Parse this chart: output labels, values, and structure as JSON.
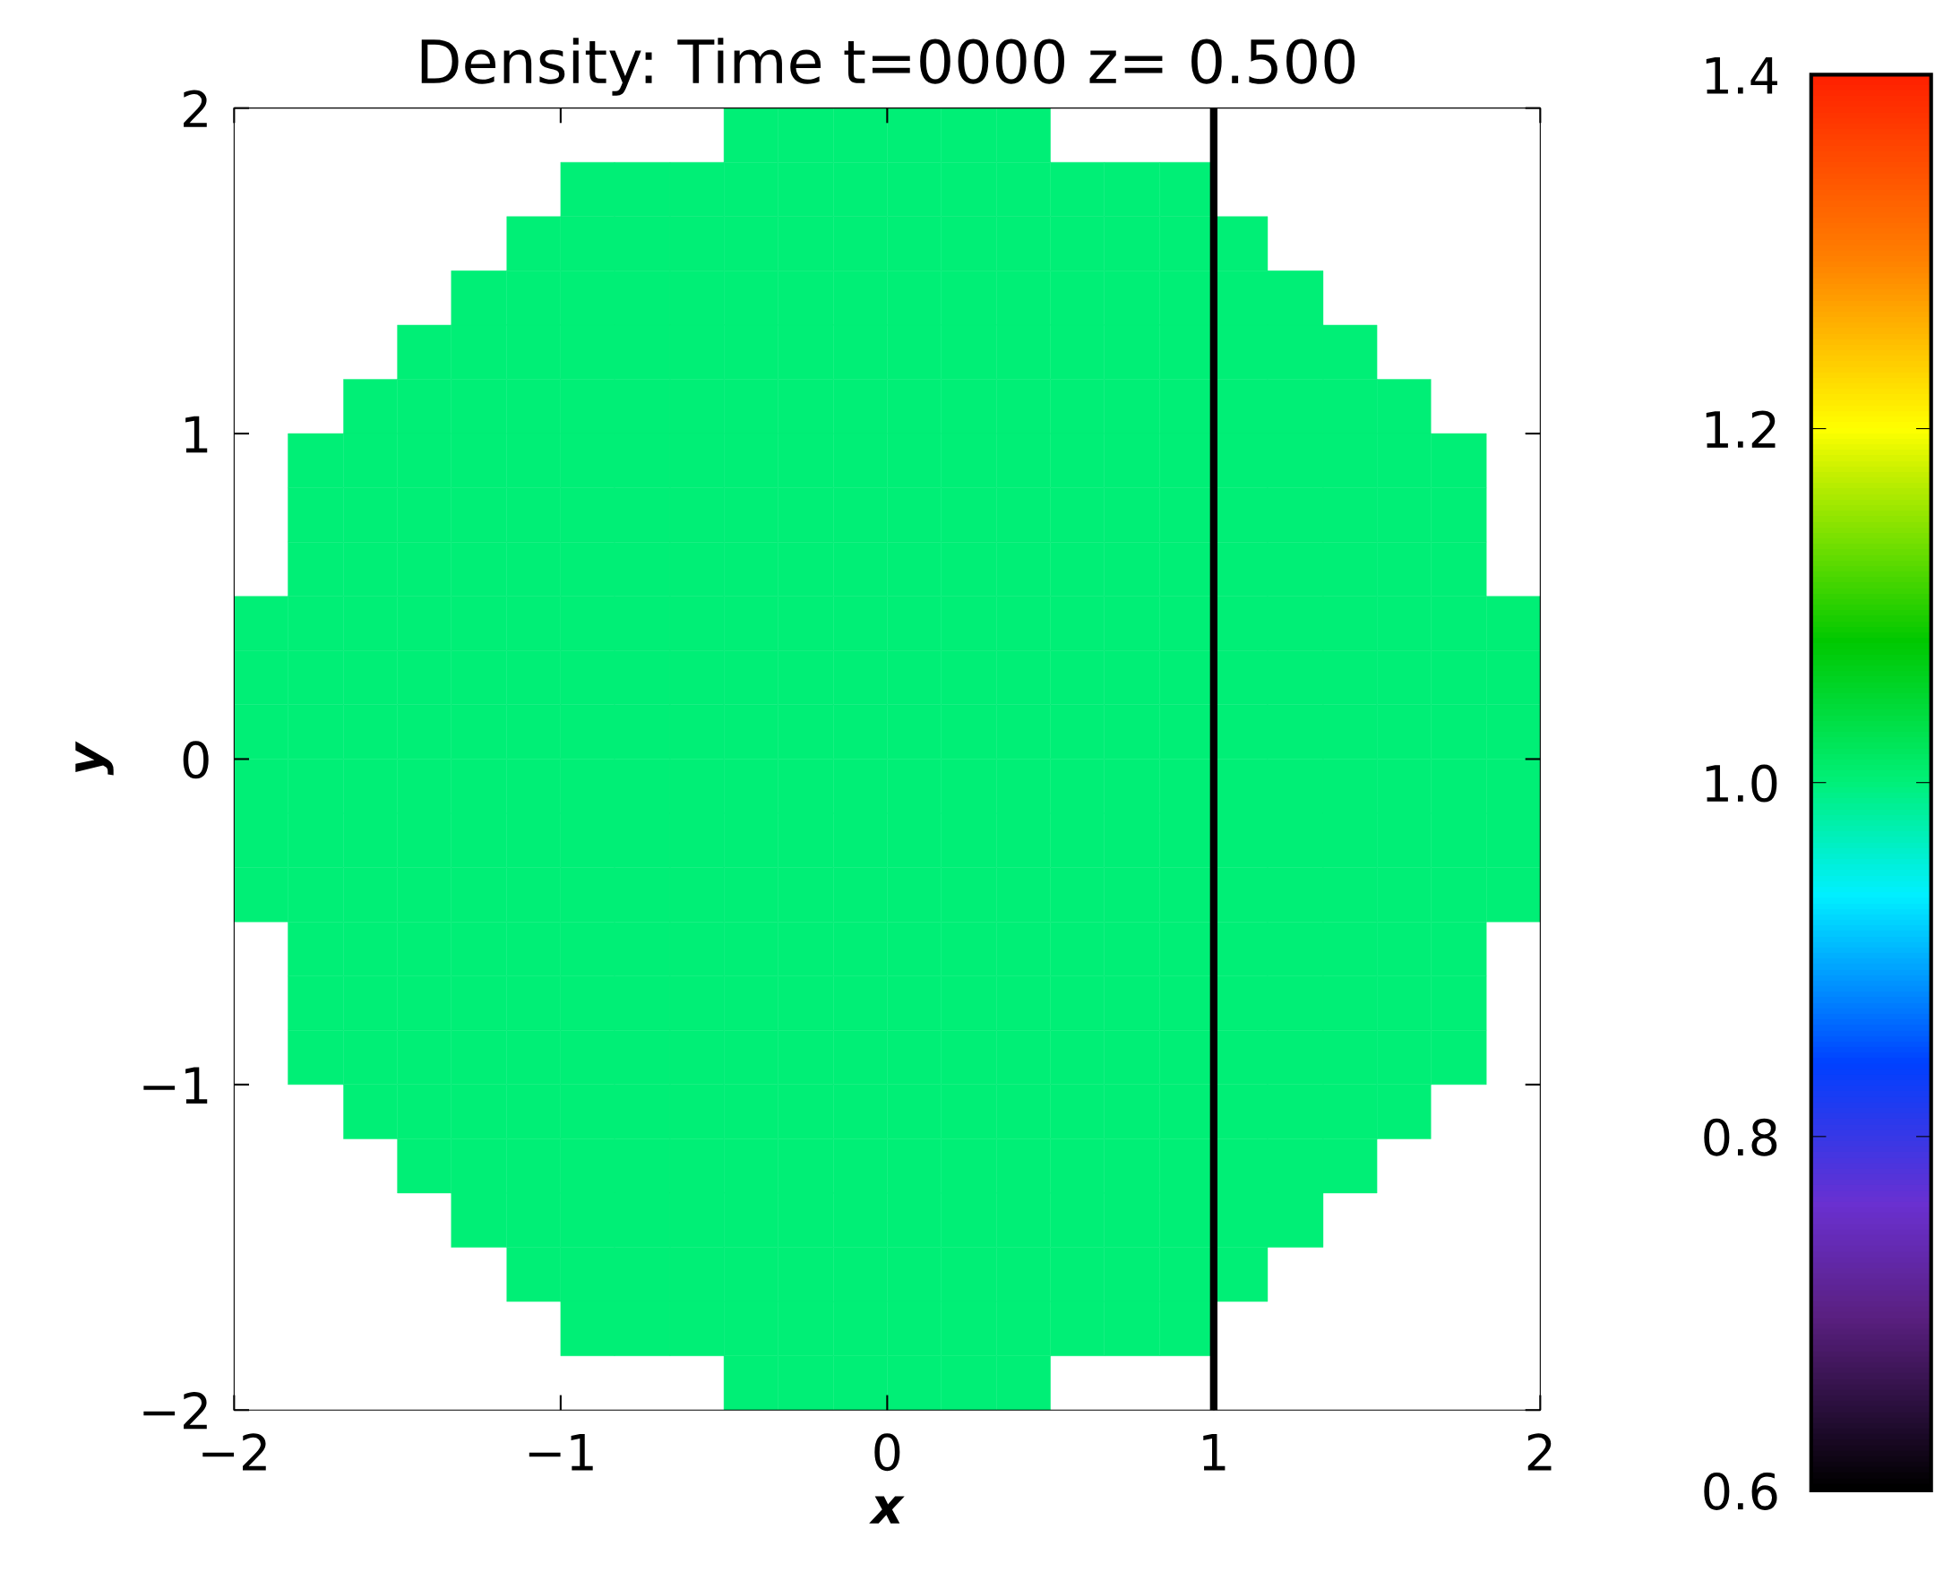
{
  "chart_data": {
    "type": "heatmap",
    "title": "Density: Time t=0000 z= 0.500",
    "xlabel": "x",
    "ylabel": "y",
    "x": [
      -1.92,
      -1.75,
      -1.58,
      -1.42,
      -1.25,
      -1.08,
      -0.92,
      -0.75,
      -0.58,
      -0.42,
      -0.25,
      -0.08,
      0.08,
      0.25,
      0.42,
      0.58,
      0.75,
      0.92,
      1.08,
      1.25,
      1.42,
      1.58,
      1.75,
      1.92
    ],
    "xlim": [
      -2,
      2
    ],
    "ylim": [
      -2,
      2
    ],
    "xticks": [
      -2,
      -1,
      0,
      1,
      2
    ],
    "yticks": [
      -2,
      -1,
      0,
      1,
      2
    ],
    "clim": [
      0.6,
      1.4
    ],
    "cticks": [
      0.6,
      0.8,
      {
        "value": 1,
        "label": "1.0"
      },
      1.2,
      1.4
    ],
    "ref_lines": [
      {
        "axis": "x",
        "value": 1,
        "color": "#000000"
      }
    ],
    "grid": false,
    "legend": false,
    "cells": [
      [
        null,
        null,
        null,
        null,
        null,
        null,
        null,
        null,
        null,
        1,
        1,
        1,
        1,
        1,
        1,
        null,
        null,
        null,
        null,
        null,
        null,
        null,
        null,
        null
      ],
      [
        null,
        null,
        null,
        null,
        null,
        null,
        1,
        1,
        1,
        1,
        1,
        1,
        1,
        1,
        1,
        1,
        1,
        1,
        null,
        null,
        null,
        null,
        null,
        null
      ],
      [
        null,
        null,
        null,
        null,
        null,
        1,
        1,
        1,
        1,
        1,
        1,
        1,
        1,
        1,
        1,
        1,
        1,
        1,
        1,
        null,
        null,
        null,
        null,
        null
      ],
      [
        null,
        null,
        null,
        null,
        1,
        1,
        1,
        1,
        1,
        1,
        1,
        1,
        1,
        1,
        1,
        1,
        1,
        1,
        1,
        1,
        null,
        null,
        null,
        null
      ],
      [
        null,
        null,
        null,
        1,
        1,
        1,
        1,
        1,
        1,
        1,
        1,
        1,
        1,
        1,
        1,
        1,
        1,
        1,
        1,
        1,
        1,
        null,
        null,
        null
      ],
      [
        null,
        null,
        1,
        1,
        1,
        1,
        1,
        1,
        1,
        1,
        1,
        1,
        1,
        1,
        1,
        1,
        1,
        1,
        1,
        1,
        1,
        1,
        null,
        null
      ],
      [
        null,
        1,
        1,
        1,
        1,
        1,
        1,
        1,
        1,
        1,
        1,
        1,
        1,
        1,
        1,
        1,
        1,
        1,
        1,
        1,
        1,
        1,
        1,
        null
      ],
      [
        null,
        1,
        1,
        1,
        1,
        1,
        1,
        1,
        1,
        1,
        1,
        1,
        1,
        1,
        1,
        1,
        1,
        1,
        1,
        1,
        1,
        1,
        1,
        null
      ],
      [
        null,
        1,
        1,
        1,
        1,
        1,
        1,
        1,
        1,
        1,
        1,
        1,
        1,
        1,
        1,
        1,
        1,
        1,
        1,
        1,
        1,
        1,
        1,
        null
      ],
      [
        1,
        1,
        1,
        1,
        1,
        1,
        1,
        1,
        1,
        1,
        1,
        1,
        1,
        1,
        1,
        1,
        1,
        1,
        1,
        1,
        1,
        1,
        1,
        1
      ],
      [
        1,
        1,
        1,
        1,
        1,
        1,
        1,
        1,
        1,
        1,
        1,
        1,
        1,
        1,
        1,
        1,
        1,
        1,
        1,
        1,
        1,
        1,
        1,
        1
      ],
      [
        1,
        1,
        1,
        1,
        1,
        1,
        1,
        1,
        1,
        1,
        1,
        1,
        1,
        1,
        1,
        1,
        1,
        1,
        1,
        1,
        1,
        1,
        1,
        1
      ],
      [
        1,
        1,
        1,
        1,
        1,
        1,
        1,
        1,
        1,
        1,
        1,
        1,
        1,
        1,
        1,
        1,
        1,
        1,
        1,
        1,
        1,
        1,
        1,
        1
      ],
      [
        1,
        1,
        1,
        1,
        1,
        1,
        1,
        1,
        1,
        1,
        1,
        1,
        1,
        1,
        1,
        1,
        1,
        1,
        1,
        1,
        1,
        1,
        1,
        1
      ],
      [
        1,
        1,
        1,
        1,
        1,
        1,
        1,
        1,
        1,
        1,
        1,
        1,
        1,
        1,
        1,
        1,
        1,
        1,
        1,
        1,
        1,
        1,
        1,
        1
      ],
      [
        null,
        1,
        1,
        1,
        1,
        1,
        1,
        1,
        1,
        1,
        1,
        1,
        1,
        1,
        1,
        1,
        1,
        1,
        1,
        1,
        1,
        1,
        1,
        null
      ],
      [
        null,
        1,
        1,
        1,
        1,
        1,
        1,
        1,
        1,
        1,
        1,
        1,
        1,
        1,
        1,
        1,
        1,
        1,
        1,
        1,
        1,
        1,
        1,
        null
      ],
      [
        null,
        1,
        1,
        1,
        1,
        1,
        1,
        1,
        1,
        1,
        1,
        1,
        1,
        1,
        1,
        1,
        1,
        1,
        1,
        1,
        1,
        1,
        1,
        null
      ],
      [
        null,
        null,
        1,
        1,
        1,
        1,
        1,
        1,
        1,
        1,
        1,
        1,
        1,
        1,
        1,
        1,
        1,
        1,
        1,
        1,
        1,
        1,
        null,
        null
      ],
      [
        null,
        null,
        null,
        1,
        1,
        1,
        1,
        1,
        1,
        1,
        1,
        1,
        1,
        1,
        1,
        1,
        1,
        1,
        1,
        1,
        1,
        null,
        null,
        null
      ],
      [
        null,
        null,
        null,
        null,
        1,
        1,
        1,
        1,
        1,
        1,
        1,
        1,
        1,
        1,
        1,
        1,
        1,
        1,
        1,
        1,
        null,
        null,
        null,
        null
      ],
      [
        null,
        null,
        null,
        null,
        null,
        1,
        1,
        1,
        1,
        1,
        1,
        1,
        1,
        1,
        1,
        1,
        1,
        1,
        1,
        null,
        null,
        null,
        null,
        null
      ],
      [
        null,
        null,
        null,
        null,
        null,
        null,
        1,
        1,
        1,
        1,
        1,
        1,
        1,
        1,
        1,
        1,
        1,
        1,
        null,
        null,
        null,
        null,
        null,
        null
      ],
      [
        null,
        null,
        null,
        null,
        null,
        null,
        null,
        null,
        null,
        1,
        1,
        1,
        1,
        1,
        1,
        null,
        null,
        null,
        null,
        null,
        null,
        null,
        null,
        null
      ]
    ]
  }
}
